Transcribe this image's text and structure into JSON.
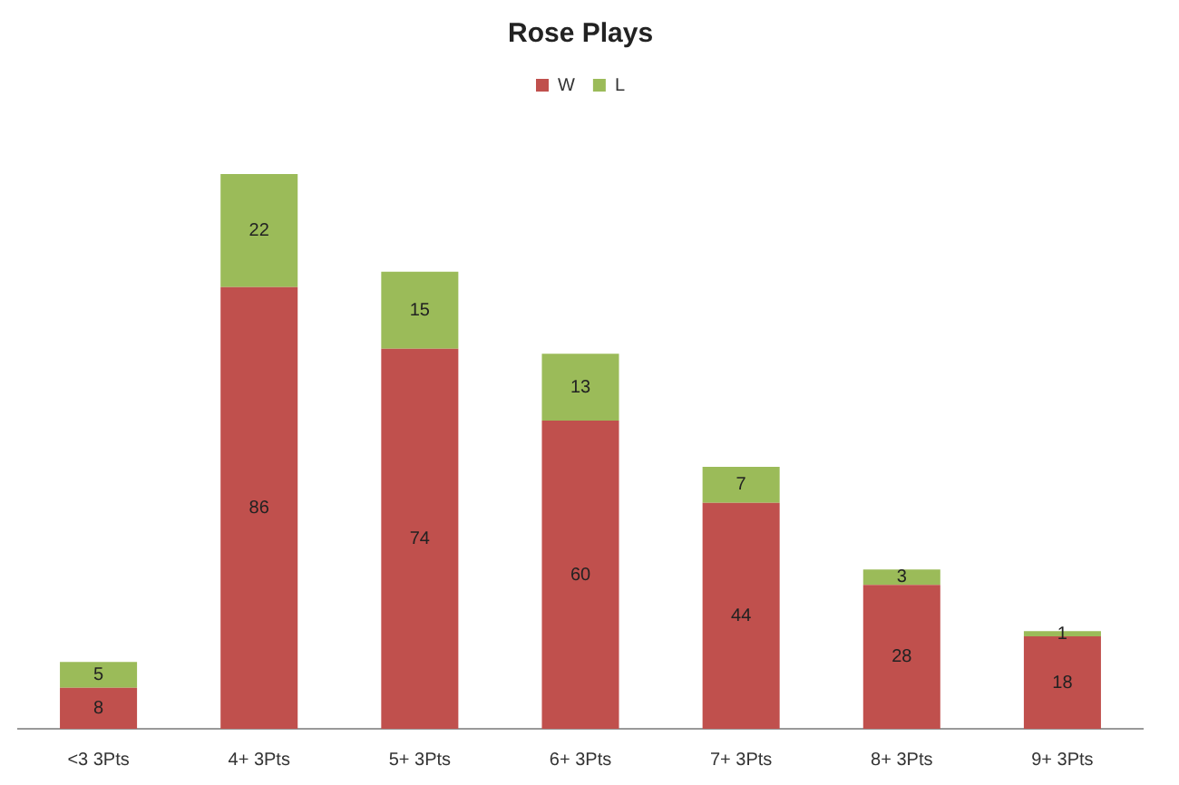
{
  "chart_data": {
    "type": "bar",
    "title": "Rose Plays",
    "stacked": true,
    "legend": "top",
    "data_labels": true,
    "grid": false,
    "categories": [
      "<3 3Pts",
      "4+ 3Pts",
      "5+ 3Pts",
      "6+ 3Pts",
      "7+ 3Pts",
      "8+ 3Pts",
      "9+ 3Pts"
    ],
    "series": [
      {
        "name": "W",
        "color": "#c0504d",
        "values": [
          8,
          86,
          74,
          60,
          44,
          28,
          18
        ]
      },
      {
        "name": "L",
        "color": "#9bbb59",
        "values": [
          5,
          22,
          15,
          13,
          7,
          3,
          1
        ]
      }
    ],
    "tick_labels": "x"
  }
}
